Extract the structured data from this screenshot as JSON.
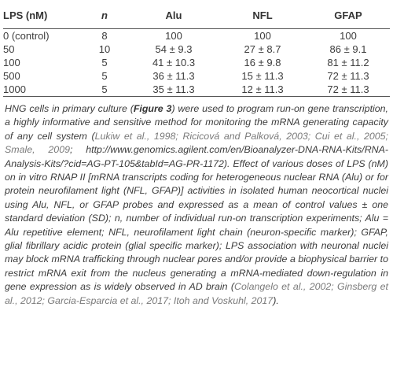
{
  "table": {
    "headers": [
      "LPS (nM)",
      "n",
      "Alu",
      "NFL",
      "GFAP"
    ],
    "rows": [
      [
        "0 (control)",
        "8",
        "100",
        "100",
        "100"
      ],
      [
        "50",
        "10",
        "54 ± 9.3",
        "27 ± 8.7",
        "86 ± 9.1"
      ],
      [
        "100",
        "5",
        "41 ± 10.3",
        "16 ± 9.8",
        "81 ± 11.2"
      ],
      [
        "500",
        "5",
        "36 ± 11.3",
        "15 ± 11.3",
        "72 ± 11.3"
      ],
      [
        "1000",
        "5",
        "35 ± 11.3",
        "12 ± 11.3",
        "72 ± 11.3"
      ]
    ]
  },
  "caption": {
    "p1": "HNG cells in primary culture (",
    "fig": "Figure 3",
    "p2": ") were used to program run-on gene transcription, a highly informative and sensitive method for monitoring the mRNA generating capacity of any cell system (",
    "ref1": "Lukiw et al., 1998; Ricicová and Palková, 2003; Cui et al., 2005; Smale, 2009",
    "p3": "; http://www.genomics.agilent.com/en/Bioanalyzer-DNA-RNA-Kits/RNA-Analysis-Kits/?cid=AG-PT-105&tabId=AG-PR-1172). Effect of various doses of LPS (nM) on in vitro RNAP II [mRNA transcripts coding for heterogeneous nuclear RNA (Alu) or for protein neurofilament light (NFL, GFAP)] activities in isolated human neocortical nuclei using Alu, NFL, or GFAP probes and expressed as a mean of control values ± one standard deviation (SD); n, number of individual run-on transcription experiments; Alu = Alu repetitive element; NFL, neurofilament light chain (neuron-specific marker); GFAP, glial fibrillary acidic protein (glial specific marker); LPS association with neuronal nuclei may block mRNA trafficking through nuclear pores and/or provide a biophysical barrier to restrict mRNA exit from the nucleus generating a mRNA-mediated down-regulation in gene expression as is widely observed in AD brain (",
    "ref2": "Colangelo et al., 2002; Ginsberg et al., 2012; Garcia-Esparcia et al., 2017; Itoh and Voskuhl, 2017",
    "p4": ")."
  }
}
